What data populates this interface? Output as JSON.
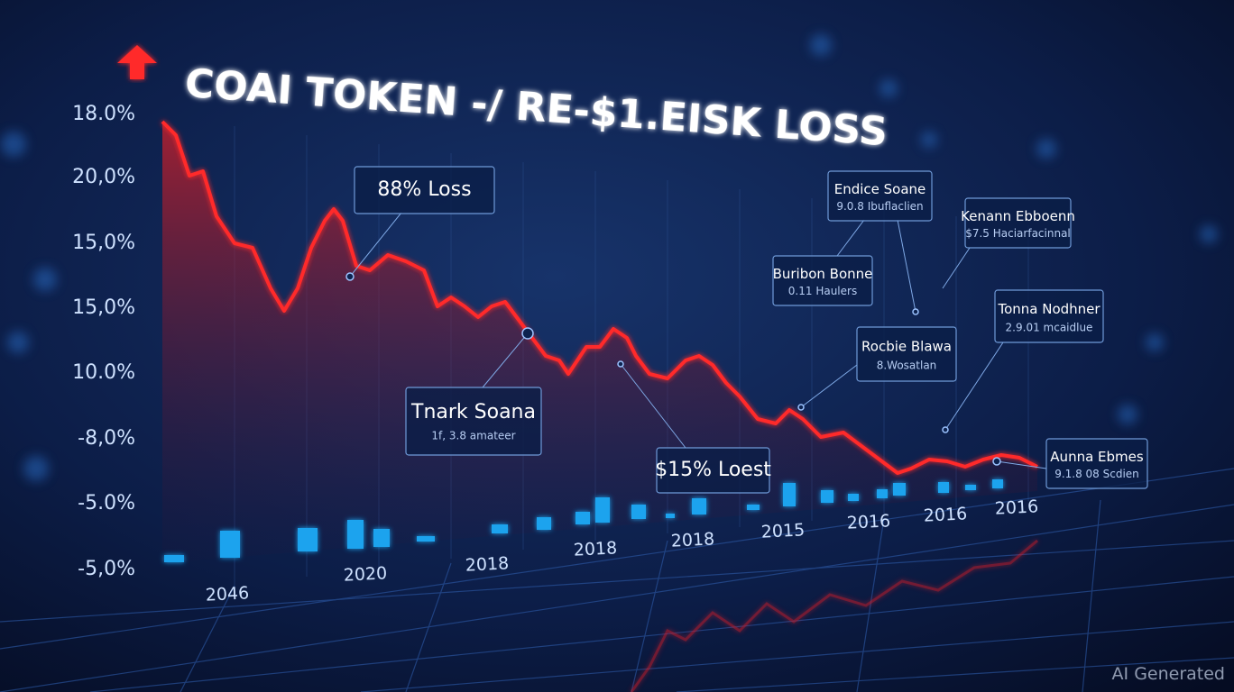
{
  "title": "COAI TOKEN -/ RE-$1.EISK LOSS",
  "y_axis_labels": [
    "18.0%",
    "20,0%",
    "15,0%",
    "15,0%",
    "10.0%",
    "-8,0%",
    "-5.0%",
    "-5,0%"
  ],
  "x_axis_labels": [
    "2046",
    "2020",
    "2018",
    "2018",
    "2018",
    "2015",
    "2016",
    "2016",
    "2016"
  ],
  "annotations": [
    {
      "title": "88% Loss"
    },
    {
      "title": "Tnark Soana",
      "subtitle": "1f, 3.8 amateer"
    },
    {
      "title": "$15% Loest"
    },
    {
      "title": "Endice Soane",
      "subtitle": "9.0.8 Ibuflaclien"
    },
    {
      "title": "Kenann Ebboenn",
      "subtitle": "$7.5 Haciarfacinnal"
    },
    {
      "title": "Buribon Bonne",
      "subtitle": "0.11 Haulers"
    },
    {
      "title": "Tonna Nodhner",
      "subtitle": "2.9.01 mcaidlue"
    },
    {
      "title": "Rocbie Blawa",
      "subtitle": "8.Wosatlan"
    },
    {
      "title": "Aunna Ebmes",
      "subtitle": "9.1.8 08 Scdien"
    }
  ],
  "watermark": "AI Generated"
}
